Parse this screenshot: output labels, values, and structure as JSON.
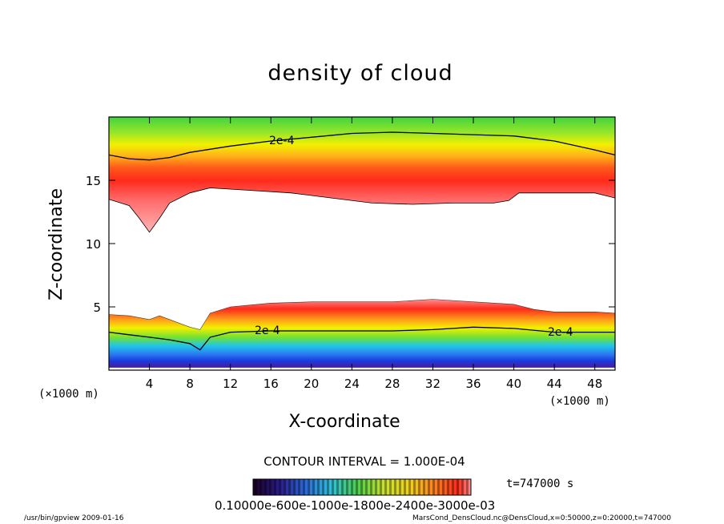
{
  "chart_data": {
    "type": "heatmap",
    "title": "density of cloud",
    "xlabel": "X-coordinate",
    "ylabel": "Z-coordinate",
    "x_unit": "(×1000 m)",
    "xlim": [
      0,
      50
    ],
    "ylim": [
      0,
      20
    ],
    "x_ticks": [
      4,
      8,
      12,
      16,
      20,
      24,
      28,
      32,
      36,
      40,
      44,
      48
    ],
    "y_ticks": [
      5,
      10,
      15
    ],
    "contour_labels": [
      "2e-4",
      "2e-4",
      "2e-4"
    ],
    "contour_interval_text": "CONTOUR INTERVAL = 1.000E-04",
    "time_text": "t=747000 s",
    "colorbar_labels_text": "0.10000e-600e-1000e-1800e-2400e-3000e-03",
    "colors": {
      "low": "#4b1a9a",
      "blue": "#1b3be0",
      "cyan": "#20c6e8",
      "green": "#3fd43f",
      "yellow": "#f2f000",
      "orange": "#ff9f1a",
      "red": "#ff2a1a",
      "pink": "#ff8f8f"
    },
    "upper_layer": {
      "top_contour": [
        [
          0,
          17.0
        ],
        [
          2,
          16.7
        ],
        [
          4,
          16.6
        ],
        [
          6,
          16.8
        ],
        [
          8,
          17.2
        ],
        [
          12,
          17.7
        ],
        [
          16,
          18.1
        ],
        [
          20,
          18.4
        ],
        [
          24,
          18.7
        ],
        [
          28,
          18.8
        ],
        [
          32,
          18.7
        ],
        [
          36,
          18.6
        ],
        [
          40,
          18.5
        ],
        [
          44,
          18.1
        ],
        [
          48,
          17.4
        ],
        [
          50,
          17.0
        ]
      ],
      "bottom_edge": [
        [
          0,
          13.5
        ],
        [
          2,
          13.0
        ],
        [
          3,
          12.0
        ],
        [
          4,
          10.9
        ],
        [
          5,
          12.0
        ],
        [
          6,
          13.2
        ],
        [
          8,
          14.0
        ],
        [
          10,
          14.4
        ],
        [
          14,
          14.2
        ],
        [
          18,
          14.0
        ],
        [
          22,
          13.6
        ],
        [
          26,
          13.2
        ],
        [
          30,
          13.1
        ],
        [
          34,
          13.2
        ],
        [
          38,
          13.2
        ],
        [
          39.5,
          13.4
        ],
        [
          40.5,
          14.0
        ],
        [
          44,
          14.0
        ],
        [
          48,
          14.0
        ],
        [
          50,
          13.6
        ]
      ]
    },
    "lower_layer": {
      "top_edge": [
        [
          0,
          4.4
        ],
        [
          2,
          4.3
        ],
        [
          4,
          4.0
        ],
        [
          5,
          4.3
        ],
        [
          6,
          4.0
        ],
        [
          8,
          3.4
        ],
        [
          9,
          3.2
        ],
        [
          10,
          4.5
        ],
        [
          12,
          5.0
        ],
        [
          16,
          5.3
        ],
        [
          20,
          5.4
        ],
        [
          24,
          5.4
        ],
        [
          28,
          5.4
        ],
        [
          32,
          5.6
        ],
        [
          36,
          5.4
        ],
        [
          40,
          5.2
        ],
        [
          42,
          4.8
        ],
        [
          44,
          4.6
        ],
        [
          48,
          4.6
        ],
        [
          50,
          4.5
        ]
      ],
      "contour": [
        [
          0,
          3.0
        ],
        [
          2,
          2.8
        ],
        [
          4,
          2.6
        ],
        [
          6,
          2.4
        ],
        [
          8,
          2.1
        ],
        [
          9,
          1.6
        ],
        [
          10,
          2.6
        ],
        [
          12,
          3.0
        ],
        [
          16,
          3.1
        ],
        [
          20,
          3.1
        ],
        [
          24,
          3.1
        ],
        [
          28,
          3.1
        ],
        [
          32,
          3.2
        ],
        [
          36,
          3.4
        ],
        [
          40,
          3.3
        ],
        [
          44,
          3.0
        ],
        [
          48,
          3.0
        ],
        [
          50,
          3.0
        ]
      ],
      "base": 0.2
    }
  },
  "footer": {
    "left": "/usr/bin/gpview   2009-01-16",
    "right": "MarsCond_DensCloud.nc@DensCloud,x=0:50000,z=0:20000,t=747000"
  }
}
